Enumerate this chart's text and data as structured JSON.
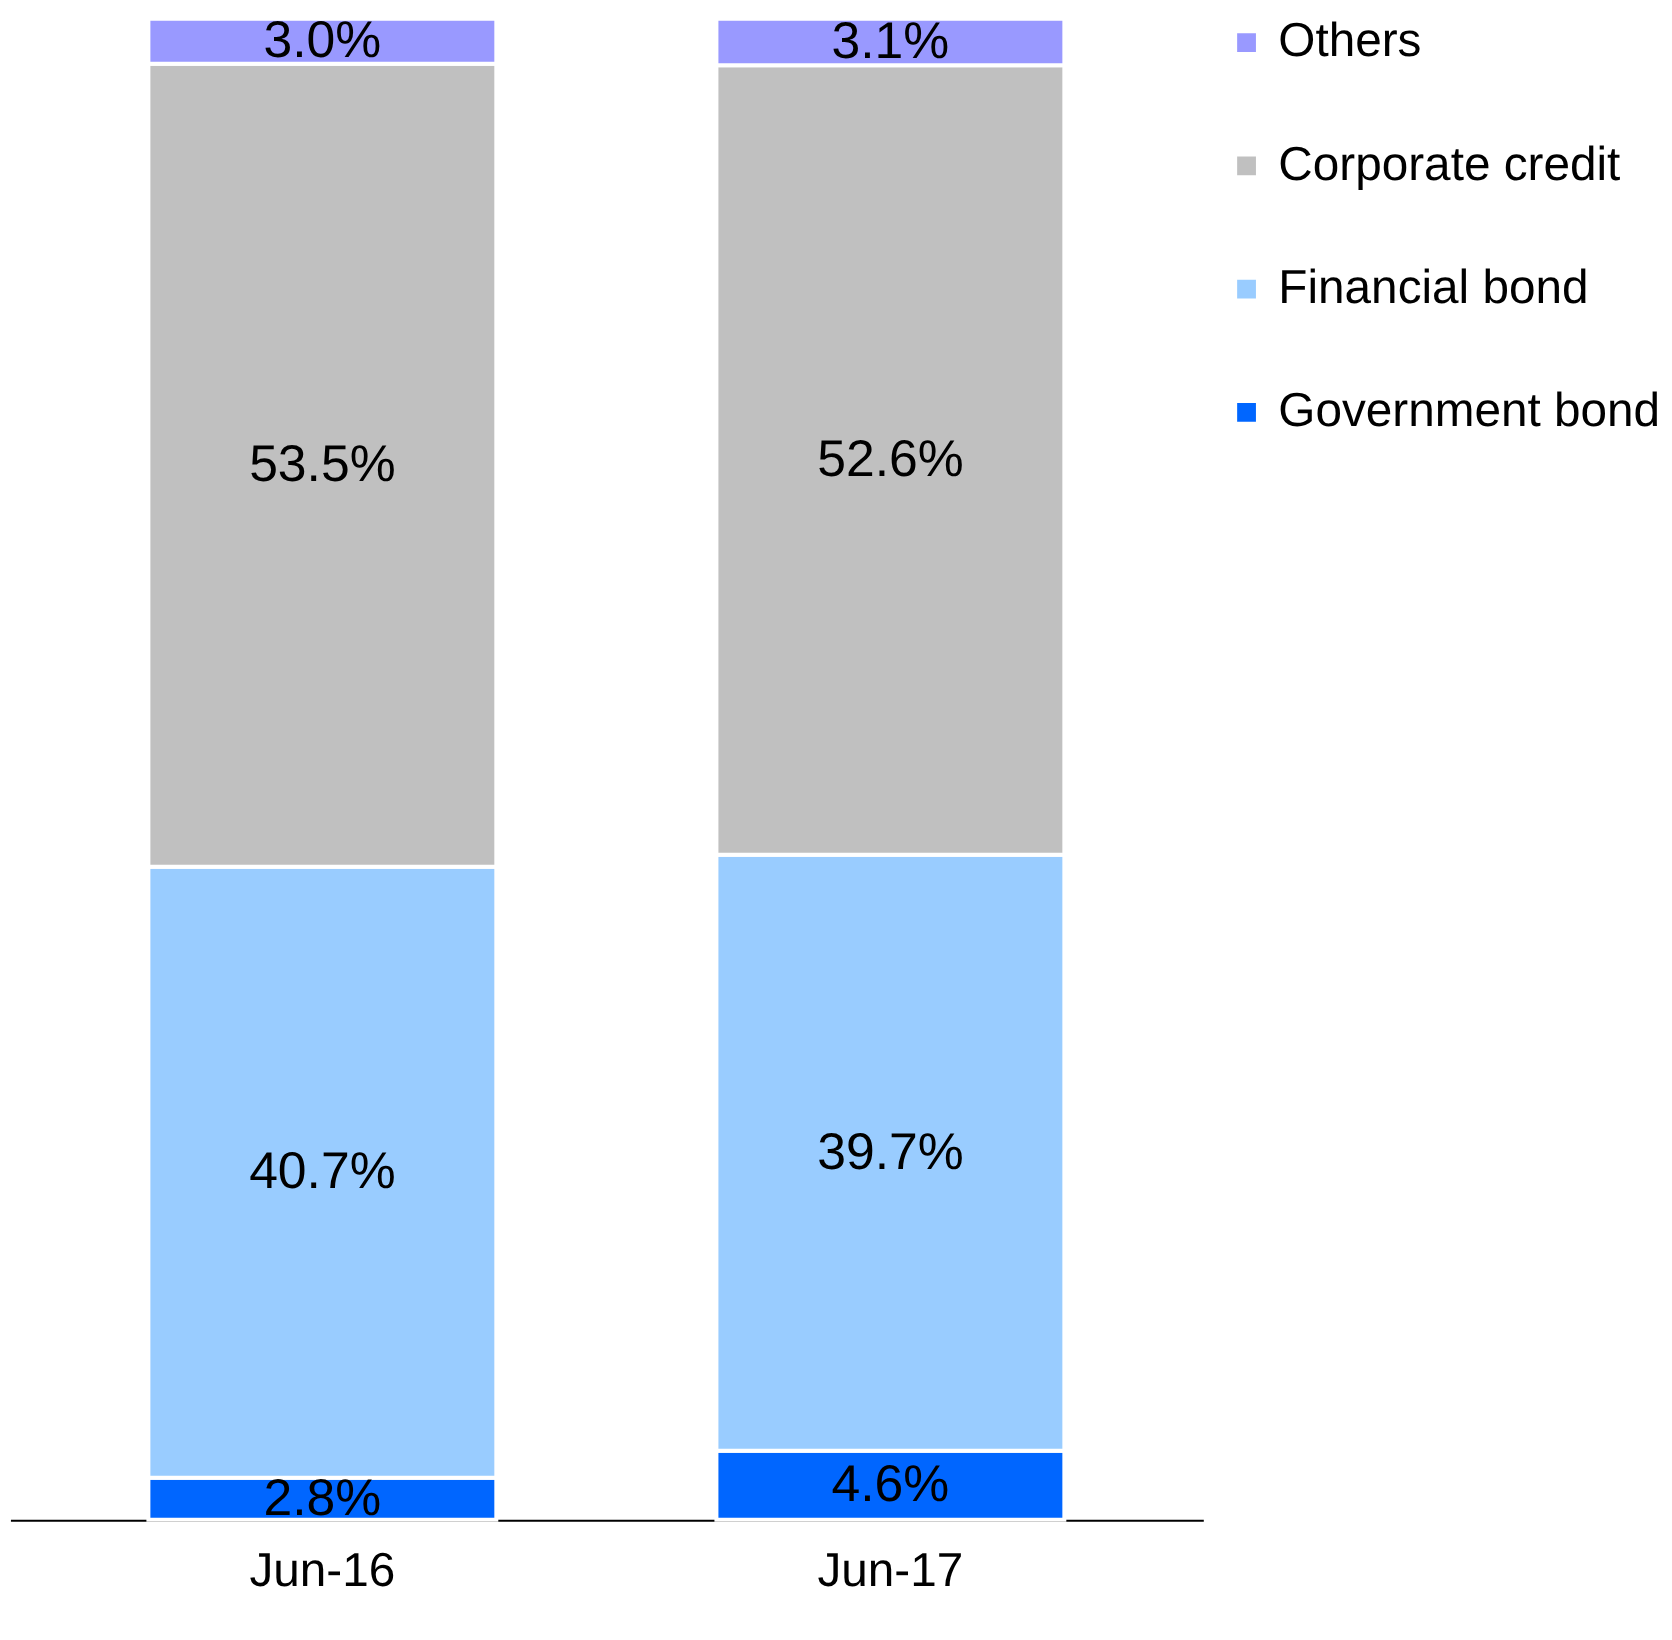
{
  "chart_data": {
    "type": "bar",
    "stacked": true,
    "categories": [
      "Jun-16",
      "Jun-17"
    ],
    "series": [
      {
        "name": "Government bond",
        "color": "#0066ff",
        "values": [
          2.8,
          4.6
        ],
        "value_labels": [
          "2.8%",
          "4.6%"
        ]
      },
      {
        "name": "Financial bond",
        "color": "#99ccff",
        "values": [
          40.7,
          39.7
        ],
        "value_labels": [
          "40.7%",
          "39.7%"
        ]
      },
      {
        "name": "Corporate credit",
        "color": "#c0c0c0",
        "values": [
          53.5,
          52.6
        ],
        "value_labels": [
          "53.5%",
          "52.6%"
        ]
      },
      {
        "name": "Others",
        "color": "#9999ff",
        "values": [
          3.0,
          3.1
        ],
        "value_labels": [
          "3.0%",
          "3.1%"
        ]
      }
    ],
    "legend": "right",
    "grid": false,
    "tick_labels": "x"
  }
}
